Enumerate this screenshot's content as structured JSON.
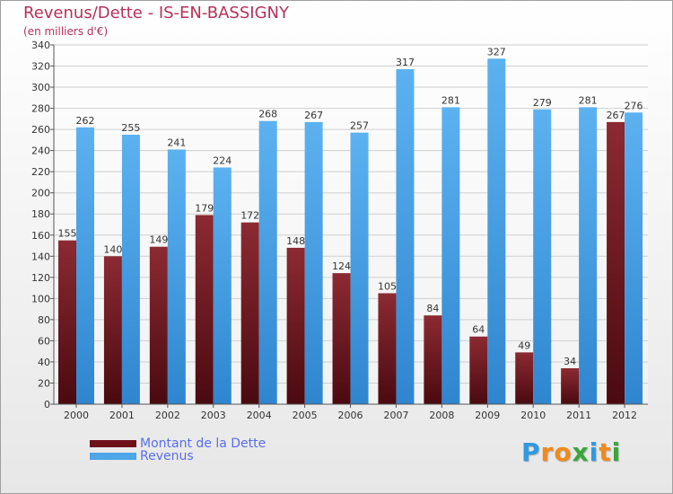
{
  "chart_data": {
    "type": "bar",
    "title": "Revenus/Dette - IS-EN-BASSIGNY",
    "subtitle": "(en milliers d'€)",
    "categories": [
      "2000",
      "2001",
      "2002",
      "2003",
      "2004",
      "2005",
      "2006",
      "2007",
      "2008",
      "2009",
      "2010",
      "2011",
      "2012"
    ],
    "series": [
      {
        "name": "Montant de la Dette",
        "color": "#7a1c24",
        "values": [
          155,
          140,
          149,
          179,
          172,
          148,
          124,
          105,
          84,
          64,
          49,
          34,
          267
        ]
      },
      {
        "name": "Revenus",
        "color": "#4ea5e8",
        "values": [
          262,
          255,
          241,
          224,
          268,
          267,
          257,
          317,
          281,
          327,
          279,
          281,
          276
        ]
      }
    ],
    "ylim": [
      0,
      340
    ],
    "ytick_step": 20,
    "grid": true,
    "legend_position": "bottom-left"
  },
  "logo": {
    "letters": [
      "P",
      "r",
      "o",
      "x",
      "i",
      "t",
      "i"
    ],
    "colors": [
      "#2e9be0",
      "#f08a1c",
      "#f08a1c",
      "#3aa63a",
      "#2e9be0",
      "#f08a1c",
      "#3aa63a"
    ]
  }
}
